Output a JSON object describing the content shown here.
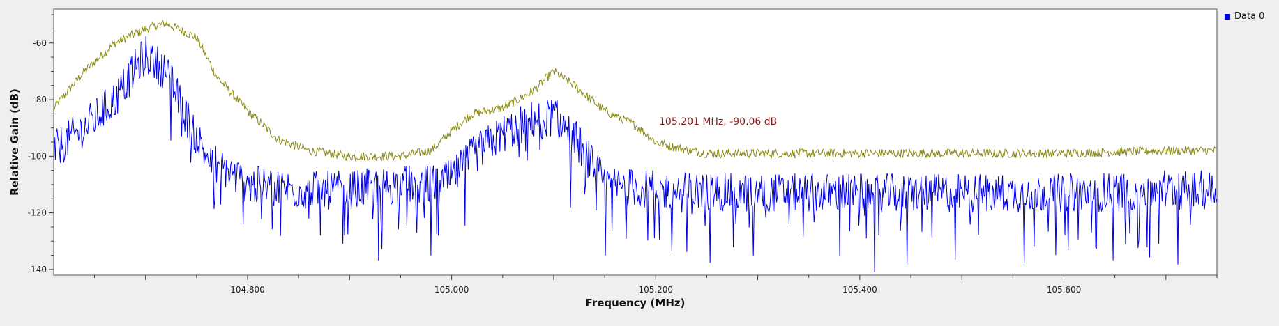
{
  "chart_data": {
    "type": "line",
    "xlabel": "Frequency (MHz)",
    "ylabel": "Relative Gain (dB)",
    "xlim": [
      104.61,
      105.75
    ],
    "ylim": [
      -142,
      -48
    ],
    "x_ticks": [
      "104.800",
      "105.000",
      "105.200",
      "105.400",
      "105.600"
    ],
    "x_tick_values": [
      104.8,
      105.0,
      105.2,
      105.4,
      105.6
    ],
    "y_ticks": [
      "-60",
      "-80",
      "-100",
      "-120",
      "-140"
    ],
    "y_tick_values": [
      -60,
      -80,
      -100,
      -120,
      -140
    ],
    "grid": false,
    "legend_position": "top-right",
    "series": [
      {
        "name": "Data 0",
        "color": "#0000e6",
        "role": "spectrum",
        "anchors_x": [
          104.61,
          104.64,
          104.67,
          104.69,
          104.7,
          104.72,
          104.74,
          104.76,
          104.8,
          104.85,
          104.9,
          104.95,
          104.98,
          105.0,
          105.02,
          105.05,
          105.08,
          105.1,
          105.12,
          105.15,
          105.2,
          105.3,
          105.4,
          105.5,
          105.6,
          105.7,
          105.75
        ],
        "anchors_y": [
          -98,
          -90,
          -80,
          -69,
          -64,
          -70,
          -86,
          -100,
          -110,
          -112,
          -112,
          -110,
          -110,
          -108,
          -100,
          -92,
          -87,
          -86,
          -93,
          -110,
          -112,
          -113,
          -113,
          -113,
          -113,
          -112,
          -112
        ]
      },
      {
        "name": "",
        "color": "#8a8a12",
        "role": "max-hold",
        "anchors_x": [
          104.61,
          104.64,
          104.67,
          104.7,
          104.72,
          104.75,
          104.77,
          104.8,
          104.83,
          104.86,
          104.9,
          104.95,
          104.98,
          105.0,
          105.02,
          105.05,
          105.08,
          105.1,
          105.12,
          105.15,
          105.18,
          105.2,
          105.22,
          105.25,
          105.3,
          105.4,
          105.5,
          105.6,
          105.7,
          105.75
        ],
        "anchors_y": [
          -83,
          -70,
          -60,
          -55,
          -53,
          -58,
          -72,
          -84,
          -94,
          -98,
          -100,
          -100,
          -98,
          -91,
          -85,
          -83,
          -77,
          -70,
          -75,
          -84,
          -89,
          -95,
          -97,
          -99,
          -99,
          -99,
          -99,
          -99,
          -98,
          -98
        ]
      }
    ],
    "annotations": [
      {
        "text": "105.201 MHz, -90.06 dB",
        "color": "#8b1a1a"
      }
    ]
  },
  "legend": {
    "label": "Data 0",
    "color": "#0000e6"
  }
}
